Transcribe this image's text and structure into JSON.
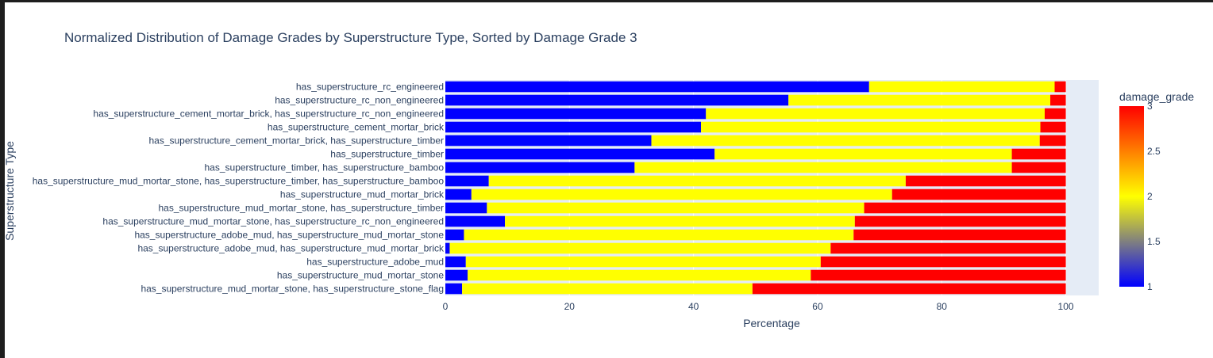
{
  "chart_data": {
    "type": "bar",
    "orientation": "horizontal",
    "barmode": "stack",
    "title": "Normalized Distribution of Damage Grades by Superstructure Type, Sorted by Damage Grade 3",
    "xlabel": "Percentage",
    "ylabel": "Superstructure Type",
    "xlim": [
      0,
      105.3
    ],
    "x_ticks": [
      "0",
      "20",
      "40",
      "60",
      "80",
      "100"
    ],
    "grid": true,
    "categories": [
      "has_superstructure_rc_engineered",
      "has_superstructure_rc_non_engineered",
      "has_superstructure_cement_mortar_brick, has_superstructure_rc_non_engineered",
      "has_superstructure_cement_mortar_brick",
      "has_superstructure_cement_mortar_brick, has_superstructure_timber",
      "has_superstructure_timber",
      "has_superstructure_timber, has_superstructure_bamboo",
      "has_superstructure_mud_mortar_stone, has_superstructure_timber, has_superstructure_bamboo",
      "has_superstructure_mud_mortar_brick",
      "has_superstructure_mud_mortar_stone, has_superstructure_timber",
      "has_superstructure_mud_mortar_stone, has_superstructure_rc_non_engineered",
      "has_superstructure_adobe_mud, has_superstructure_mud_mortar_stone",
      "has_superstructure_adobe_mud, has_superstructure_mud_mortar_brick",
      "has_superstructure_adobe_mud",
      "has_superstructure_mud_mortar_stone",
      "has_superstructure_mud_mortar_stone, has_superstructure_stone_flag"
    ],
    "series": [
      {
        "damage_grade": 1,
        "color": "#0000ff",
        "values": [
          68.3,
          55.3,
          42.0,
          41.2,
          33.2,
          43.4,
          30.5,
          7.0,
          4.2,
          6.7,
          9.6,
          3.0,
          0.7,
          3.3,
          3.6,
          2.7
        ]
      },
      {
        "damage_grade": 2,
        "color": "#ffff00",
        "values": [
          29.9,
          42.2,
          54.6,
          54.7,
          62.6,
          47.9,
          60.8,
          67.2,
          67.8,
          60.8,
          56.4,
          62.8,
          61.4,
          57.2,
          55.3,
          46.8
        ]
      },
      {
        "damage_grade": 3,
        "color": "#ff0000",
        "values": [
          1.8,
          2.5,
          3.4,
          4.1,
          4.2,
          8.7,
          8.7,
          25.8,
          28.0,
          32.5,
          34.0,
          34.2,
          37.9,
          39.5,
          41.1,
          50.5
        ]
      }
    ],
    "colorbar": {
      "title": "damage_grade",
      "range": [
        1,
        3
      ],
      "ticks": [
        "1",
        "1.5",
        "2",
        "2.5",
        "3"
      ],
      "colorscale": [
        "#0000ff",
        "#ffff00",
        "#ff0000"
      ]
    }
  }
}
